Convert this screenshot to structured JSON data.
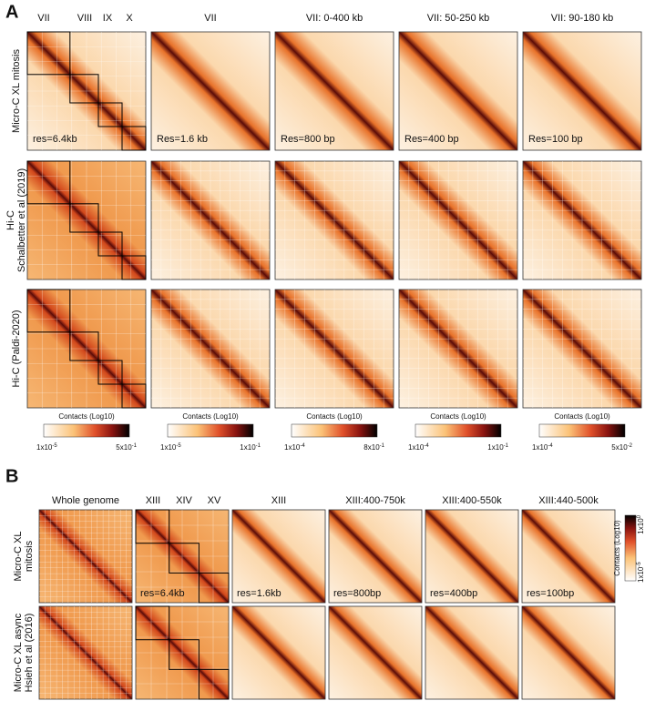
{
  "panel_a": {
    "label": "A",
    "chromosomes": [
      "VII",
      "VIII",
      "IX",
      "X"
    ],
    "columns": [
      "VII",
      "VII: 0-400 kb",
      "VII: 50-250 kb",
      "VII: 90-180 kb"
    ],
    "rows": [
      [
        "Micro-C XL mitosis"
      ],
      [
        "Hi-C",
        "Schalbetter et al (2019)"
      ],
      [
        "Hi-C (Paldi-2020)"
      ]
    ],
    "resolutions": [
      "res=6.4kb",
      "Res=1.6 kb",
      "Res=800 bp",
      "Res=400 bp",
      "Res=100 bp"
    ],
    "colorbars": [
      {
        "title": "Contacts (Log10)",
        "min": {
          "base": "1x10",
          "exp": "-5"
        },
        "max": {
          "base": "5x10",
          "exp": "-1"
        }
      },
      {
        "title": "Contacts (Log10)",
        "min": {
          "base": "1x10",
          "exp": "-5"
        },
        "max": {
          "base": "1x10",
          "exp": "-1"
        }
      },
      {
        "title": "Contacts (Log10)",
        "min": {
          "base": "1x10",
          "exp": "-4"
        },
        "max": {
          "base": "8x10",
          "exp": "-1"
        }
      },
      {
        "title": "Contacts (Log10)",
        "min": {
          "base": "1x10",
          "exp": "-4"
        },
        "max": {
          "base": "1x10",
          "exp": "-1"
        }
      },
      {
        "title": "Contacts (Log10)",
        "min": {
          "base": "1x10",
          "exp": "-4"
        },
        "max": {
          "base": "5x10",
          "exp": "-2"
        }
      }
    ]
  },
  "panel_b": {
    "label": "B",
    "chromosomes": [
      "XIII",
      "XIV",
      "XV"
    ],
    "columns": [
      "Whole genome",
      "XIII",
      "XIII:400-750k",
      "XIII:400-550k",
      "XIII:440-500k"
    ],
    "rows": [
      [
        "Micro-C XL",
        "mitosis"
      ],
      [
        "Micro-C XL async",
        "Hsieh et al (2016)"
      ]
    ],
    "resolutions": [
      "res=6.4kb",
      "res=1.6kb",
      "res=800bp",
      "res=400bp",
      "res=100bp"
    ],
    "colorbar": {
      "title": "Contacts (Log10)",
      "min": {
        "base": "1x10",
        "exp": "-5"
      },
      "max": {
        "base": "1x10",
        "exp": "0"
      }
    }
  }
}
